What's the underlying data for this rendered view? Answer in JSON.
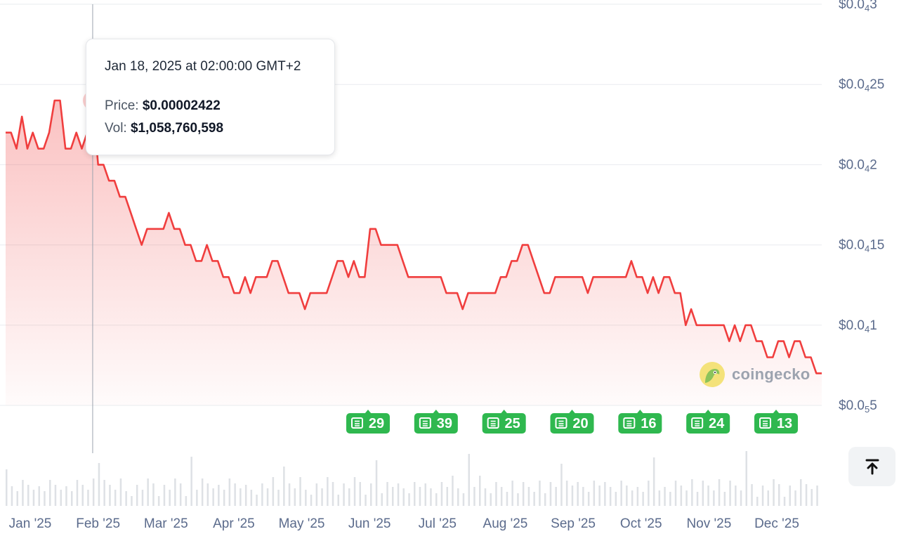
{
  "chart_data": {
    "type": "area",
    "x_tick_labels": [
      "Jan '25",
      "Feb '25",
      "Mar '25",
      "Apr '25",
      "May '25",
      "Jun '25",
      "Jul '25",
      "Aug '25",
      "Sep '25",
      "Oct '25",
      "Nov '25",
      "Dec '25"
    ],
    "y_ticks": [
      {
        "prefix": "$0.0",
        "sub": "4",
        "suffix": "3",
        "value": 3e-05
      },
      {
        "prefix": "$0.0",
        "sub": "4",
        "suffix": "25",
        "value": 2.5e-05
      },
      {
        "prefix": "$0.0",
        "sub": "4",
        "suffix": "2",
        "value": 2e-05
      },
      {
        "prefix": "$0.0",
        "sub": "4",
        "suffix": "15",
        "value": 1.5e-05
      },
      {
        "prefix": "$0.0",
        "sub": "4",
        "suffix": "1",
        "value": 1e-05
      },
      {
        "prefix": "$0.0",
        "sub": "5",
        "suffix": "5",
        "value": 5e-06
      }
    ],
    "ylim": [
      5e-06,
      3e-05
    ],
    "series": [
      {
        "values": [
          2.2e-05,
          2.2e-05,
          2.1e-05,
          2.3e-05,
          2.1e-05,
          2.2e-05,
          2.1e-05,
          2.1e-05,
          2.2e-05,
          2.4e-05,
          2.4e-05,
          2.1e-05,
          2.1e-05,
          2.2e-05,
          2.1e-05,
          2.2e-05,
          2.4e-05,
          2e-05,
          2e-05,
          1.9e-05,
          1.9e-05,
          1.8e-05,
          1.8e-05,
          1.7e-05,
          1.6e-05,
          1.5e-05,
          1.6e-05,
          1.6e-05,
          1.6e-05,
          1.6e-05,
          1.7e-05,
          1.6e-05,
          1.6e-05,
          1.5e-05,
          1.5e-05,
          1.4e-05,
          1.4e-05,
          1.5e-05,
          1.4e-05,
          1.4e-05,
          1.3e-05,
          1.3e-05,
          1.2e-05,
          1.2e-05,
          1.3e-05,
          1.2e-05,
          1.3e-05,
          1.3e-05,
          1.3e-05,
          1.4e-05,
          1.4e-05,
          1.3e-05,
          1.2e-05,
          1.2e-05,
          1.2e-05,
          1.1e-05,
          1.2e-05,
          1.2e-05,
          1.2e-05,
          1.2e-05,
          1.3e-05,
          1.4e-05,
          1.4e-05,
          1.3e-05,
          1.4e-05,
          1.3e-05,
          1.3e-05,
          1.6e-05,
          1.6e-05,
          1.5e-05,
          1.5e-05,
          1.5e-05,
          1.5e-05,
          1.4e-05,
          1.3e-05,
          1.3e-05,
          1.3e-05,
          1.3e-05,
          1.3e-05,
          1.3e-05,
          1.3e-05,
          1.2e-05,
          1.2e-05,
          1.2e-05,
          1.1e-05,
          1.2e-05,
          1.2e-05,
          1.2e-05,
          1.2e-05,
          1.2e-05,
          1.2e-05,
          1.3e-05,
          1.3e-05,
          1.4e-05,
          1.4e-05,
          1.5e-05,
          1.5e-05,
          1.4e-05,
          1.3e-05,
          1.2e-05,
          1.2e-05,
          1.3e-05,
          1.3e-05,
          1.3e-05,
          1.3e-05,
          1.3e-05,
          1.3e-05,
          1.2e-05,
          1.3e-05,
          1.3e-05,
          1.3e-05,
          1.3e-05,
          1.3e-05,
          1.3e-05,
          1.3e-05,
          1.4e-05,
          1.3e-05,
          1.3e-05,
          1.2e-05,
          1.3e-05,
          1.2e-05,
          1.3e-05,
          1.3e-05,
          1.2e-05,
          1.2e-05,
          1e-05,
          1.1e-05,
          1e-05,
          1e-05,
          1e-05,
          1e-05,
          1e-05,
          1e-05,
          9e-06,
          1e-05,
          9e-06,
          1e-05,
          1e-05,
          9e-06,
          9e-06,
          8e-06,
          8e-06,
          9e-06,
          9e-06,
          8e-06,
          9e-06,
          9e-06,
          8e-06,
          8e-06,
          7e-06,
          7e-06
        ],
        "color": "#f03e3e"
      }
    ],
    "volume_bars": 150,
    "grid": true,
    "news_badges": [
      "29",
      "39",
      "25",
      "20",
      "16",
      "24",
      "13"
    ],
    "crosshair_index": 16
  },
  "tooltip": {
    "date": "Jan 18, 2025 at 02:00:00 GMT+2",
    "price_label": "Price:",
    "price_value": "$0.00002422",
    "vol_label": "Vol:",
    "vol_value": "$1,058,760,598"
  },
  "watermark": "coingecko",
  "colors": {
    "line": "#f03e3e",
    "badge": "#2fb84f",
    "axis_text": "#5b6b8c",
    "grid": "#e9ecef",
    "volume": "#d0d4da"
  },
  "icons": {
    "scroll_top": "arrow-up-to-line-icon",
    "news": "newspaper-icon"
  }
}
